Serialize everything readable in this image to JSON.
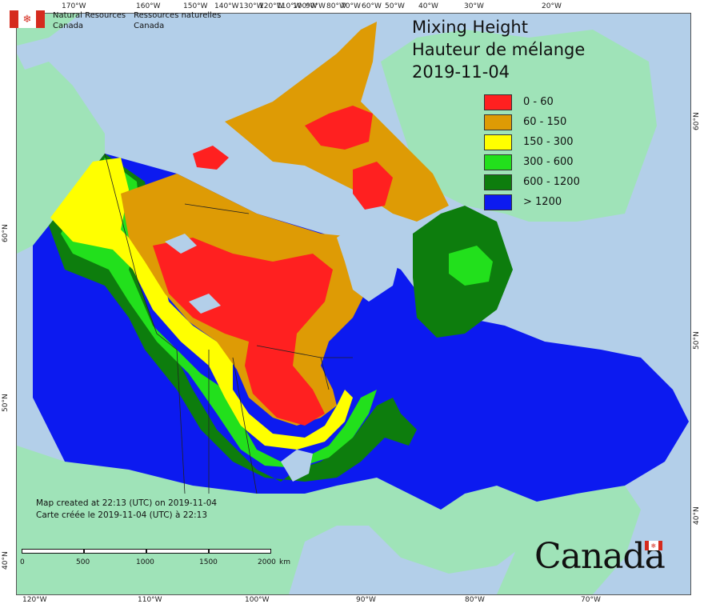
{
  "title": {
    "en": "Mixing Height",
    "fr": "Hauteur de mélange",
    "date": "2019-11-04"
  },
  "agency": {
    "en_line1": "Natural Resources",
    "en_line2": "Canada",
    "fr_line1": "Ressources naturelles",
    "fr_line2": "Canada"
  },
  "legend": {
    "items": [
      {
        "label": "0 - 60",
        "color": "#ff2020"
      },
      {
        "label": "60 - 150",
        "color": "#de9b05"
      },
      {
        "label": "150 - 300",
        "color": "#ffff00"
      },
      {
        "label": "300 - 600",
        "color": "#22e01c"
      },
      {
        "label": "600 - 1200",
        "color": "#0d7d0d"
      },
      {
        "label": "> 1200",
        "color": "#0c1af0"
      }
    ]
  },
  "footer": {
    "line_en": "Map created at 22:13 (UTC) on 2019-11-04",
    "line_fr": "Carte créée le 2019-11-04 (UTC) à 22:13"
  },
  "scale": {
    "labels": [
      "0",
      "500",
      "1000",
      "1500",
      "2000"
    ],
    "unit": "km"
  },
  "wordmark": "Canada",
  "graticule": {
    "top": [
      "170°W",
      "160°W",
      "150°W",
      "140°W",
      "130°W",
      "120°W",
      "110°W",
      "100°W",
      "90°W",
      "80°W",
      "70°W",
      "60°W",
      "50°W",
      "40°W",
      "30°W",
      "20°W"
    ],
    "bottom": [
      "120°W",
      "110°W",
      "100°W",
      "90°W",
      "80°W",
      "70°W"
    ],
    "left": [
      "60°N",
      "50°N",
      "40°N"
    ],
    "right": [
      "60°N",
      "50°N",
      "40°N"
    ]
  },
  "colors": {
    "water": "#b3cfe9",
    "other_land": "#9fe3b8",
    "flag_red": "#d52b1e"
  }
}
